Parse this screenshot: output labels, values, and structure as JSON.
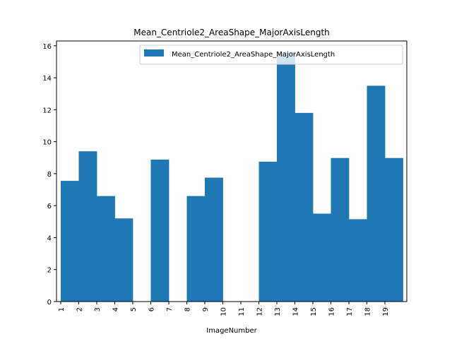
{
  "chart_data": {
    "type": "bar",
    "title": "Mean_Centriole2_AreaShape_MajorAxisLength",
    "xlabel": "ImageNumber",
    "ylabel": "",
    "categories": [
      "1",
      "2",
      "3",
      "4",
      "5",
      "6",
      "7",
      "8",
      "9",
      "10",
      "11",
      "12",
      "13",
      "14",
      "15",
      "16",
      "17",
      "18",
      "19"
    ],
    "series": [
      {
        "name": "Mean_Centriole2_AreaShape_MajorAxisLength",
        "color": "#1f77b4",
        "values": [
          7.55,
          9.4,
          6.6,
          5.2,
          0,
          8.88,
          0,
          6.6,
          7.75,
          0,
          0,
          8.75,
          15.6,
          11.8,
          5.5,
          8.98,
          5.15,
          13.5,
          8.98
        ]
      }
    ],
    "ylim": [
      0,
      16.3
    ],
    "yticks": [
      "0",
      "2",
      "4",
      "6",
      "8",
      "10",
      "12",
      "14",
      "16"
    ],
    "legend_position": "top-right",
    "grid": false
  }
}
